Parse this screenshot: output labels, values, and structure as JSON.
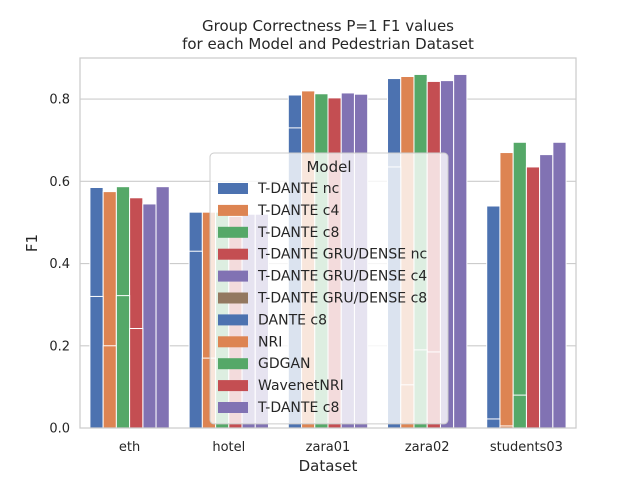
{
  "chart_data": {
    "type": "bar",
    "title": "Group Correctness P=1 F1 values\nfor each Model and Pedestrian Dataset",
    "xlabel": "Dataset",
    "ylabel": "F1",
    "ylim": [
      0,
      0.9
    ],
    "yticks": [
      "0.0",
      "0.2",
      "0.4",
      "0.6",
      "0.8"
    ],
    "grid": true,
    "legend_title": "Model",
    "legend_placement": "center",
    "categories": [
      "eth",
      "hotel",
      "zara01",
      "zara02",
      "students03"
    ],
    "series": [
      {
        "name": "T-DANTE nc",
        "color": "#4c72b0",
        "values": [
          0.585,
          0.525,
          0.81,
          0.85,
          0.54
        ]
      },
      {
        "name": "T-DANTE c4",
        "color": "#dd8452",
        "values": [
          0.575,
          0.525,
          0.82,
          0.855,
          0.67
        ]
      },
      {
        "name": "T-DANTE c8",
        "color": "#55a868",
        "values": [
          0.587,
          0.525,
          0.813,
          0.86,
          0.695
        ]
      },
      {
        "name": "T-DANTE GRU/DENSE nc",
        "color": "#c44e52",
        "values": [
          0.56,
          0.515,
          0.803,
          0.843,
          0.635
        ]
      },
      {
        "name": "T-DANTE GRU/DENSE c4",
        "color": "#8172b3",
        "values": [
          0.545,
          0.52,
          0.815,
          0.845,
          0.665
        ]
      },
      {
        "name": "T-DANTE GRU/DENSE c8",
        "color": "#937860",
        "values": [
          null,
          null,
          null,
          null,
          null
        ]
      },
      {
        "name": "DANTE c8",
        "color": "#4c72b0",
        "values": [
          0.32,
          0.43,
          0.73,
          0.635,
          0.022
        ]
      },
      {
        "name": "NRI",
        "color": "#dd8452",
        "values": [
          0.2,
          0.17,
          0.0,
          0.105,
          0.005
        ]
      },
      {
        "name": "GDGAN",
        "color": "#55a868",
        "values": [
          0.322,
          0.0,
          0.0,
          0.19,
          0.08
        ]
      },
      {
        "name": "WavenetNRI",
        "color": "#c44e52",
        "values": [
          0.242,
          0.0,
          0.0,
          0.185,
          0.0
        ]
      },
      {
        "name": "T-DANTE c8",
        "color": "#8172b3",
        "values": [
          0.587,
          0.52,
          0.812,
          0.86,
          0.695
        ]
      }
    ],
    "overlay_groups": [
      {
        "series": [
          0,
          1,
          2,
          3,
          4,
          5
        ],
        "slots": [
          0,
          1,
          2,
          3,
          4,
          5
        ]
      },
      {
        "series": [
          6,
          7,
          8,
          9,
          10
        ],
        "slots": [
          0,
          1,
          2,
          3,
          5
        ]
      }
    ]
  }
}
